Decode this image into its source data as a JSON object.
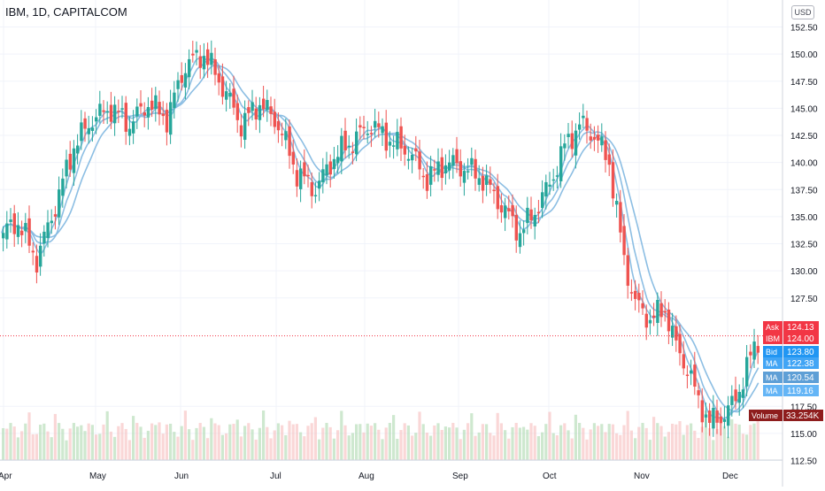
{
  "header": {
    "title": "IBM, 1D, CAPITALCOM",
    "currency": "USD"
  },
  "chart_data": {
    "type": "candlestick",
    "title": "IBM, 1D, CAPITALCOM",
    "x_tick_labels": [
      "Apr",
      "May",
      "Jun",
      "Jul",
      "Aug",
      "Sep",
      "Oct",
      "Nov",
      "Dec"
    ],
    "y_tick_labels": [
      "152.50",
      "150.00",
      "147.50",
      "145.00",
      "142.50",
      "140.00",
      "137.50",
      "135.00",
      "132.50",
      "130.00",
      "127.50",
      "117.50",
      "115.00",
      "112.50"
    ],
    "ylim": [
      112.5,
      153.5
    ],
    "colors": {
      "up": "#26a69a",
      "down": "#ef5350",
      "ma": "#7fb7e0",
      "volume_up": "#a5d6a7",
      "volume_down": "#f5b7b7"
    },
    "price_tags": [
      {
        "label": "Ask",
        "value": "124.13",
        "color": "#f23645"
      },
      {
        "label": "IBM",
        "value": "124.00",
        "color": "#f23645"
      },
      {
        "label": "Bid",
        "value": "123.80",
        "color": "#2196f3"
      },
      {
        "label": "MA",
        "value": "122.38",
        "color": "#42a5f5"
      },
      {
        "label": "MA",
        "value": "120.54",
        "color": "#5e9fd6"
      },
      {
        "label": "MA",
        "value": "119.16",
        "color": "#64b5f6"
      }
    ],
    "volume_tag": {
      "label": "Volume",
      "value": "33.254K",
      "color": "#8e1d1d"
    },
    "close_anchors": [
      [
        0,
        133.5
      ],
      [
        8,
        134.5
      ],
      [
        18,
        131.0
      ],
      [
        28,
        136.0
      ],
      [
        38,
        141.5
      ],
      [
        48,
        144.0
      ],
      [
        58,
        145.0
      ],
      [
        68,
        143.5
      ],
      [
        78,
        145.5
      ],
      [
        88,
        144.0
      ],
      [
        98,
        149.0
      ],
      [
        108,
        150.0
      ],
      [
        118,
        147.0
      ],
      [
        128,
        143.5
      ],
      [
        138,
        145.5
      ],
      [
        148,
        143.5
      ],
      [
        158,
        139.0
      ],
      [
        168,
        137.5
      ],
      [
        178,
        140.5
      ],
      [
        188,
        142.0
      ],
      [
        198,
        143.5
      ],
      [
        208,
        142.0
      ],
      [
        218,
        141.0
      ],
      [
        228,
        138.5
      ],
      [
        238,
        140.0
      ],
      [
        248,
        139.5
      ],
      [
        258,
        138.5
      ],
      [
        268,
        136.0
      ],
      [
        278,
        133.5
      ],
      [
        286,
        135.5
      ],
      [
        294,
        138.0
      ],
      [
        302,
        141.5
      ],
      [
        310,
        143.5
      ],
      [
        318,
        142.5
      ],
      [
        326,
        140.0
      ],
      [
        334,
        131.0
      ],
      [
        340,
        127.0
      ],
      [
        348,
        125.5
      ],
      [
        356,
        126.5
      ],
      [
        362,
        123.0
      ],
      [
        368,
        121.0
      ],
      [
        374,
        118.0
      ],
      [
        380,
        116.0
      ],
      [
        386,
        116.5
      ],
      [
        392,
        117.5
      ],
      [
        398,
        120.0
      ],
      [
        404,
        123.0
      ],
      [
        407,
        124.0
      ]
    ]
  }
}
